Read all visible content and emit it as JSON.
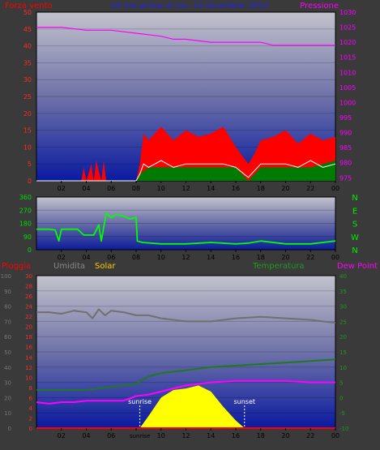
{
  "header_top": {
    "left_label": "Forza vento",
    "center_label": "24 ore prima di lun. 10 Dicembre 2012",
    "right_label": "Pressione"
  },
  "header_bottom": {
    "rain_label": "Pioggia",
    "humidity_label": "Umidita",
    "solar_label": "Solar",
    "temp_label": "Temperatura",
    "dew_label": "Dew Point"
  },
  "direction_labels": [
    "N",
    "W",
    "S",
    "E",
    "N"
  ],
  "time_ticks": [
    "02",
    "04",
    "06",
    "08",
    "10",
    "12",
    "14",
    "16",
    "18",
    "20",
    "22",
    "00"
  ],
  "marker_labels": {
    "sunrise": "sunrise",
    "sunset": "sunset",
    "sunrise_axis": "sunrise"
  },
  "colors": {
    "wind_gust": "#ff0000",
    "wind_avg": "#ffffff",
    "wind_green": "#007a00",
    "pressure": "#ff00ff",
    "direction": "#00ff00",
    "humidity": "#707070",
    "temperature": "#1f7a1f",
    "dewpoint": "#ff00ff",
    "solar": "#ffff00",
    "rain": "#ff0000",
    "title_blue": "#2222ee",
    "solar_label": "#ffcc00"
  },
  "chart_data": [
    {
      "type": "area",
      "title": "24 ore prima di lun. 10 Dicembre 2012",
      "x_ticks": [
        "02",
        "04",
        "06",
        "08",
        "10",
        "12",
        "14",
        "16",
        "18",
        "20",
        "22",
        "00"
      ],
      "y_left_label": "Forza vento",
      "y_left_ticks": [
        0,
        5,
        10,
        15,
        20,
        25,
        30,
        35,
        40,
        45,
        50
      ],
      "y_left_lim": [
        0,
        50
      ],
      "y_right_label": "Pressione",
      "y_right_ticks": [
        975,
        980,
        985,
        990,
        995,
        1000,
        1005,
        1010,
        1015,
        1020,
        1025,
        1030
      ],
      "y_right_lim": [
        974,
        1030
      ],
      "series": [
        {
          "name": "Pressione",
          "axis": "right",
          "x": [
            0,
            2,
            4,
            6,
            8,
            10,
            11,
            12,
            14,
            16,
            18,
            19,
            20,
            22,
            24
          ],
          "values": [
            1025,
            1025,
            1024,
            1024,
            1023,
            1022,
            1021,
            1021,
            1020,
            1020,
            1020,
            1019,
            1019,
            1019,
            1019
          ]
        },
        {
          "name": "Forza vento (raffica)",
          "axis": "left",
          "x": [
            0,
            3.6,
            3.8,
            4.0,
            4.4,
            4.6,
            4.8,
            5.2,
            5.4,
            5.6,
            8.0,
            8.3,
            8.6,
            9,
            10,
            11,
            12,
            13,
            14,
            15,
            16,
            17,
            17.5,
            18,
            19,
            20,
            21,
            22,
            23,
            24
          ],
          "values": [
            0,
            0,
            4,
            0,
            5,
            0,
            6,
            0,
            6,
            0,
            0,
            5,
            14,
            12,
            16,
            12,
            15,
            13,
            14,
            16,
            10,
            5,
            8,
            12,
            13,
            15,
            11,
            14,
            12,
            13
          ]
        },
        {
          "name": "Forza vento (media)",
          "axis": "left",
          "x": [
            0,
            8,
            8.3,
            8.6,
            9,
            10,
            11,
            12,
            13,
            14,
            15,
            16,
            17,
            17.5,
            18,
            19,
            20,
            21,
            22,
            23,
            24
          ],
          "values": [
            0,
            0,
            2,
            5,
            4,
            6,
            4,
            5,
            5,
            5,
            5,
            4,
            1,
            3,
            5,
            5,
            5,
            4,
            6,
            4,
            5
          ]
        },
        {
          "name": "Forza vento (base)",
          "axis": "left",
          "x": [
            0,
            8,
            8.3,
            9,
            10,
            12,
            14,
            16,
            17,
            18,
            20,
            22,
            24
          ],
          "values": [
            0,
            0,
            1,
            2,
            2,
            2,
            2,
            2,
            0,
            2,
            2,
            2,
            3
          ]
        }
      ]
    },
    {
      "type": "line",
      "y_ticks": [
        0,
        90,
        180,
        270,
        360
      ],
      "y_lim": [
        0,
        360
      ],
      "y_right_ticks": [
        "N",
        "W",
        "S",
        "E",
        "N"
      ],
      "series": [
        {
          "name": "Direzione vento",
          "x": [
            0,
            1,
            1.5,
            1.8,
            2,
            2.5,
            3,
            3.3,
            3.8,
            4,
            4.3,
            4.6,
            5,
            5.2,
            5.6,
            6,
            6.4,
            7,
            7.5,
            8.0,
            8.1,
            8.5,
            10,
            12,
            14,
            16,
            17,
            18,
            20,
            22,
            24
          ],
          "values": [
            140,
            140,
            135,
            60,
            140,
            140,
            140,
            140,
            100,
            100,
            100,
            100,
            170,
            60,
            250,
            220,
            240,
            230,
            210,
            220,
            60,
            50,
            40,
            40,
            50,
            40,
            45,
            60,
            40,
            40,
            60
          ]
        }
      ]
    },
    {
      "type": "line",
      "y_left_label": "Umidita",
      "y_left_ticks": [
        0,
        10,
        20,
        30,
        40,
        50,
        60,
        70,
        80,
        90,
        100
      ],
      "y_left_lim": [
        0,
        100
      ],
      "y_left2_label": "Pioggia",
      "y_left2_ticks": [
        0,
        2,
        4,
        6,
        8,
        10,
        12,
        14,
        16,
        18,
        20,
        22,
        24,
        26,
        28,
        30
      ],
      "y_left2_lim": [
        0,
        30
      ],
      "y_right_label": "Temperatura",
      "y_right_ticks": [
        -10,
        -5,
        0,
        5,
        10,
        15,
        20,
        25,
        30,
        35,
        40
      ],
      "y_right_lim": [
        -10,
        40
      ],
      "series": [
        {
          "name": "Umidita",
          "axis": "left",
          "x": [
            0,
            1,
            2,
            3,
            4,
            4.5,
            5,
            5.5,
            6,
            7,
            8,
            9,
            10,
            12,
            14,
            16,
            18,
            20,
            22,
            24
          ],
          "values": [
            76,
            76,
            75,
            77,
            76,
            72,
            78,
            74,
            77,
            76,
            74,
            74,
            72,
            70,
            70,
            72,
            73,
            72,
            71,
            69
          ]
        },
        {
          "name": "Temperatura",
          "axis": "right",
          "x": [
            0,
            2,
            4,
            5,
            6,
            7,
            8,
            9,
            10,
            11,
            12,
            14,
            16,
            18,
            20,
            22,
            24
          ],
          "values": [
            2.5,
            2.5,
            2.5,
            3,
            3.5,
            4,
            4.5,
            7,
            8,
            8.5,
            9,
            10,
            10.5,
            11,
            11.5,
            12,
            12.5
          ]
        },
        {
          "name": "Dew Point",
          "axis": "right",
          "x": [
            0,
            1,
            2,
            3,
            4,
            5,
            6,
            7,
            8,
            9,
            10,
            11,
            12,
            14,
            16,
            18,
            20,
            22,
            24
          ],
          "values": [
            -1.5,
            -2,
            -1.5,
            -1.5,
            -1,
            -1,
            -1,
            -1,
            0.5,
            1,
            2,
            3,
            4,
            5,
            5.5,
            5.5,
            5.5,
            5,
            5
          ]
        },
        {
          "name": "Solar",
          "axis": "left",
          "x": [
            8.3,
            9,
            10,
            11,
            12,
            13,
            14,
            15,
            16,
            16.7
          ],
          "values": [
            0,
            8,
            20,
            25,
            26,
            28,
            24,
            14,
            5,
            0
          ]
        },
        {
          "name": "Pioggia",
          "axis": "left2",
          "x": [
            0,
            24
          ],
          "values": [
            0,
            0
          ]
        }
      ],
      "markers": {
        "sunrise": 8.3,
        "sunset": 16.7
      }
    }
  ]
}
